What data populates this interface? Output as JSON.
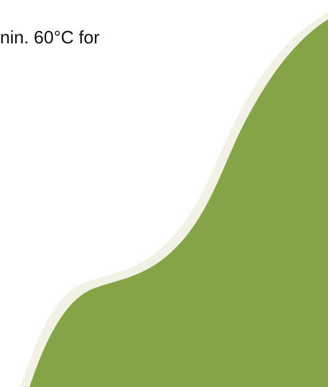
{
  "text": {
    "fragment": "nin. 60°C for"
  },
  "colors": {
    "background": "#ffffff",
    "shape_fill": "#84a447",
    "shape_edge": "#f1f1e5",
    "text": "#111111"
  }
}
